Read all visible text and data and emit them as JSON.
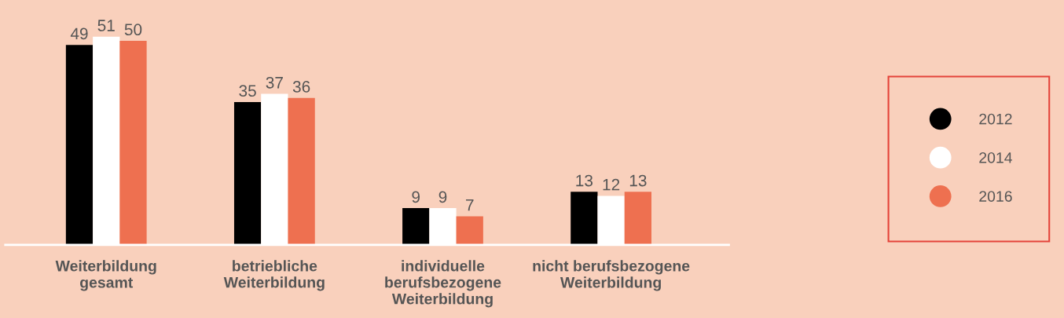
{
  "chart_data": {
    "type": "bar",
    "categories": [
      "Weiterbildung\ngesamt",
      "betriebliche\nWeiterbildung",
      "individuelle\nberufsbezogene\nWeiterbildung",
      "nicht berufsbezogene\nWeiterbildung"
    ],
    "series": [
      {
        "name": "2012",
        "color": "#000000",
        "values": [
          49,
          35,
          9,
          13
        ]
      },
      {
        "name": "2014",
        "color": "#ffffff",
        "values": [
          51,
          37,
          9,
          12
        ]
      },
      {
        "name": "2016",
        "color": "#ee7050",
        "values": [
          50,
          36,
          7,
          13
        ]
      }
    ],
    "data_labels": true,
    "legend": "right",
    "grid": false
  }
}
